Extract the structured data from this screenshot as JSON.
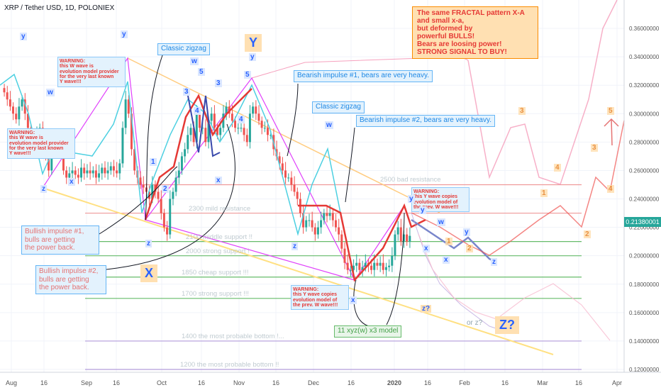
{
  "header": {
    "title": "XRP / Tether USD, 1D, POLONIEX",
    "right_badge": "0.21380001",
    "x_ticks": [
      "Aug",
      "16",
      "Sep",
      "16",
      "Oct",
      "16",
      "Nov",
      "16",
      "Dec",
      "16",
      "2020",
      "16",
      "Feb",
      "16",
      "Mar",
      "16",
      "Apr"
    ],
    "y_ticks": [
      "0.36000000",
      "0.34000000",
      "0.32000000",
      "0.30000000",
      "0.28000000",
      "0.26000000",
      "0.24000000",
      "0.22000000",
      "0.20000000",
      "0.18000000",
      "0.16000000",
      "0.14000000",
      "0.12000000"
    ]
  },
  "annotations": {
    "signal_box": "The same FRACTAL pattern X-A\nand small x-a,\nbut deformed by\npowerful BULLS!\nBears are loosing power!\nSTRONG SIGNAL TO BUY!",
    "warning_w1": "WARNING:\nthis W wave is\nevolution model provider\nfor the very last known\nY wave!!!",
    "warning_w2": "WARNING:\nthis W wave is\nevolution model provider\nfor the very last known\nY wave!!!",
    "warning_y1": "WARNING:\nthis Y wave copies\nevolution model of\nthe prev. W wave!!!",
    "warning_y2": "WARNING:\nthis Y wave copies\nevolution model of\nthe prev. W wave!!!",
    "classic_zigzag_1": "Classic zigzag",
    "classic_zigzag_2": "Classic zigzag",
    "bearish_1": "Bearish impulse #1, bears are very heavy.",
    "bearish_2": "Bearish impulse #2, bears are very heavy.",
    "bullish_1": "Bullish impulse #1,\nbulls are getting\nthe power back.",
    "bullish_2": "Bullish impulse #2,\nbulls are getting\nthe power back.",
    "model": "11 xyz(w) x3 model",
    "or_z": "or z?",
    "z_q": "z?",
    "Z_big": "Z?",
    "X_big": "X",
    "Y_big": "Y"
  },
  "levels": [
    {
      "label": "2500 bad resistance",
      "value": 0.25
    },
    {
      "label": "2300 mild resistance",
      "value": 0.23
    },
    {
      "label": "2100 middle support !!",
      "value": 0.21
    },
    {
      "label": "2000 strong support !",
      "value": 0.2
    },
    {
      "label": "1850 cheap support !!!",
      "value": 0.185
    },
    {
      "label": "1700 strong support !!!",
      "value": 0.17
    },
    {
      "label": "1400 the most probable bottom !...",
      "value": 0.14
    },
    {
      "label": "1200 the most probable bottom !!",
      "value": 0.12
    }
  ],
  "wave_labels": [
    {
      "t": "y",
      "x": 33,
      "y": 53,
      "c": "#2962ff"
    },
    {
      "t": "w",
      "x": 70,
      "y": 132,
      "c": "#2962ff"
    },
    {
      "t": "z",
      "x": 62,
      "y": 268,
      "c": "#2962ff"
    },
    {
      "t": "x",
      "x": 101,
      "y": 258,
      "c": "#2962ff"
    },
    {
      "t": "y",
      "x": 175,
      "y": 50,
      "c": "#2962ff"
    },
    {
      "t": "w",
      "x": 273,
      "y": 88,
      "c": "#2962ff"
    },
    {
      "t": "5",
      "x": 284,
      "y": 103,
      "c": "#2962ff"
    },
    {
      "t": "3",
      "x": 263,
      "y": 131,
      "c": "#2962ff"
    },
    {
      "t": "4",
      "x": 278,
      "y": 158,
      "c": "#2962ff"
    },
    {
      "t": "1",
      "x": 216,
      "y": 230,
      "c": "#2962ff"
    },
    {
      "t": "2",
      "x": 233,
      "y": 268,
      "c": "#2962ff"
    },
    {
      "t": "z",
      "x": 210,
      "y": 345,
      "c": "#2962ff"
    },
    {
      "t": "3",
      "x": 308,
      "y": 119,
      "c": "#2962ff"
    },
    {
      "t": "4",
      "x": 340,
      "y": 170,
      "c": "#2962ff"
    },
    {
      "t": "y",
      "x": 356,
      "y": 82,
      "c": "#2962ff"
    },
    {
      "t": "5",
      "x": 349,
      "y": 107,
      "c": "#2962ff"
    },
    {
      "t": "x",
      "x": 308,
      "y": 256,
      "c": "#2962ff"
    },
    {
      "t": "w",
      "x": 463,
      "y": 178,
      "c": "#2962ff"
    },
    {
      "t": "z",
      "x": 416,
      "y": 349,
      "c": "#2962ff"
    },
    {
      "t": "x",
      "x": 498,
      "y": 425,
      "c": "#2962ff"
    },
    {
      "t": "y",
      "x": 580,
      "y": 282,
      "c": "#2962ff"
    },
    {
      "t": "y",
      "x": 596,
      "y": 298,
      "c": "#2962ff"
    },
    {
      "t": "w",
      "x": 621,
      "y": 315,
      "c": "#2962ff"
    },
    {
      "t": "1",
      "x": 633,
      "y": 342,
      "c": "#e67e22"
    },
    {
      "t": "y",
      "x": 658,
      "y": 329,
      "c": "#2962ff"
    },
    {
      "t": "x",
      "x": 601,
      "y": 352,
      "c": "#2962ff"
    },
    {
      "t": "x",
      "x": 629,
      "y": 368,
      "c": "#2962ff"
    },
    {
      "t": "2",
      "x": 662,
      "y": 352,
      "c": "#e67e22"
    },
    {
      "t": "z",
      "x": 697,
      "y": 371,
      "c": "#2962ff"
    },
    {
      "t": "3",
      "x": 736,
      "y": 158,
      "c": "#e67e22"
    },
    {
      "t": "4",
      "x": 786,
      "y": 238,
      "c": "#e67e22"
    },
    {
      "t": "1",
      "x": 767,
      "y": 274,
      "c": "#e67e22"
    },
    {
      "t": "2",
      "x": 828,
      "y": 332,
      "c": "#e67e22"
    },
    {
      "t": "3",
      "x": 838,
      "y": 210,
      "c": "#e67e22"
    },
    {
      "t": "4",
      "x": 861,
      "y": 268,
      "c": "#e67e22"
    },
    {
      "t": "5",
      "x": 861,
      "y": 158,
      "c": "#e67e22"
    }
  ],
  "colors": {
    "up": "#26a69a",
    "down": "#ef5350",
    "wave_magenta": "#e040fb",
    "support_green": "#66bb6a",
    "resistance_red": "#ef9a9a",
    "bottom_purple": "#b39ddb",
    "cyan": "#4dd0e1",
    "forecast_red": "#f48fb1"
  },
  "chart_data": {
    "type": "candlestick",
    "title": "XRP / Tether USD, 1D, POLONIEX",
    "ylim": [
      0.11,
      0.37
    ],
    "last_price": 0.21380001,
    "series": [
      {
        "name": "XRP / Tether USD",
        "values": [
          0.315,
          0.31,
          0.305,
          0.3,
          0.296,
          0.305,
          0.31,
          0.3,
          0.29,
          0.28,
          0.275,
          0.285,
          0.29,
          0.28,
          0.27,
          0.26,
          0.275,
          0.28,
          0.285,
          0.28,
          0.26,
          0.255,
          0.258,
          0.26,
          0.257,
          0.255,
          0.262,
          0.258,
          0.26,
          0.258,
          0.26,
          0.255,
          0.258,
          0.262,
          0.258,
          0.26,
          0.263,
          0.26,
          0.258,
          0.265,
          0.29,
          0.31,
          0.3,
          0.275,
          0.26,
          0.255,
          0.25,
          0.248,
          0.245,
          0.24,
          0.25,
          0.245,
          0.24,
          0.23,
          0.22,
          0.215,
          0.24,
          0.245,
          0.255,
          0.26,
          0.27,
          0.275,
          0.285,
          0.29,
          0.28,
          0.3,
          0.29,
          0.29,
          0.28,
          0.295,
          0.3,
          0.29,
          0.285,
          0.29,
          0.3,
          0.305,
          0.3,
          0.295,
          0.29,
          0.29,
          0.29,
          0.285,
          0.28,
          0.3,
          0.305,
          0.3,
          0.295,
          0.29,
          0.29,
          0.285,
          0.285,
          0.275,
          0.27,
          0.265,
          0.26,
          0.255,
          0.255,
          0.25,
          0.245,
          0.24,
          0.23,
          0.22,
          0.225,
          0.225,
          0.22,
          0.215,
          0.22,
          0.225,
          0.23,
          0.228,
          0.23,
          0.225,
          0.22,
          0.215,
          0.205,
          0.195,
          0.19,
          0.19,
          0.193,
          0.195,
          0.19,
          0.192,
          0.195,
          0.193,
          0.19,
          0.195,
          0.193,
          0.195,
          0.19,
          0.192,
          0.193,
          0.2,
          0.215,
          0.22,
          0.21,
          0.215,
          0.21,
          0.214
        ]
      }
    ],
    "forecast_paths": [
      "red (bullish)",
      "blue (bearish)",
      "pink",
      "purple"
    ]
  }
}
